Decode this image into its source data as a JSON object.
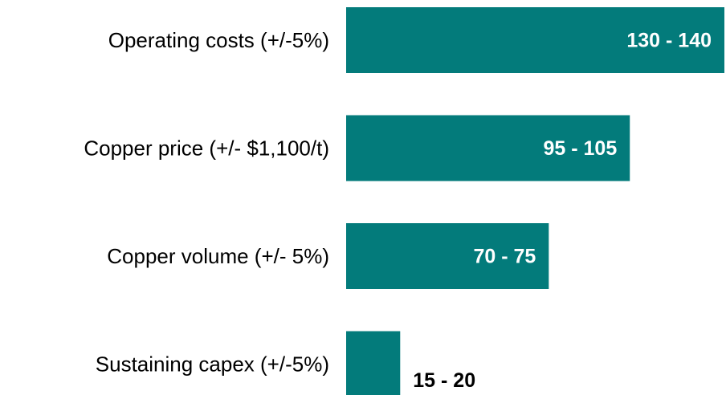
{
  "chart_data": {
    "type": "bar",
    "orientation": "horizontal",
    "categories": [
      "Operating costs (+/-5%)",
      "Copper price (+/- $1,100/t)",
      "Copper volume  (+/- 5%)",
      "Sustaining capex (+/-5%)"
    ],
    "values": [
      140,
      105,
      75,
      20
    ],
    "value_labels": [
      "130 - 140",
      "95 - 105",
      "70 - 75",
      "15 - 20"
    ],
    "color": "#037b7b"
  }
}
